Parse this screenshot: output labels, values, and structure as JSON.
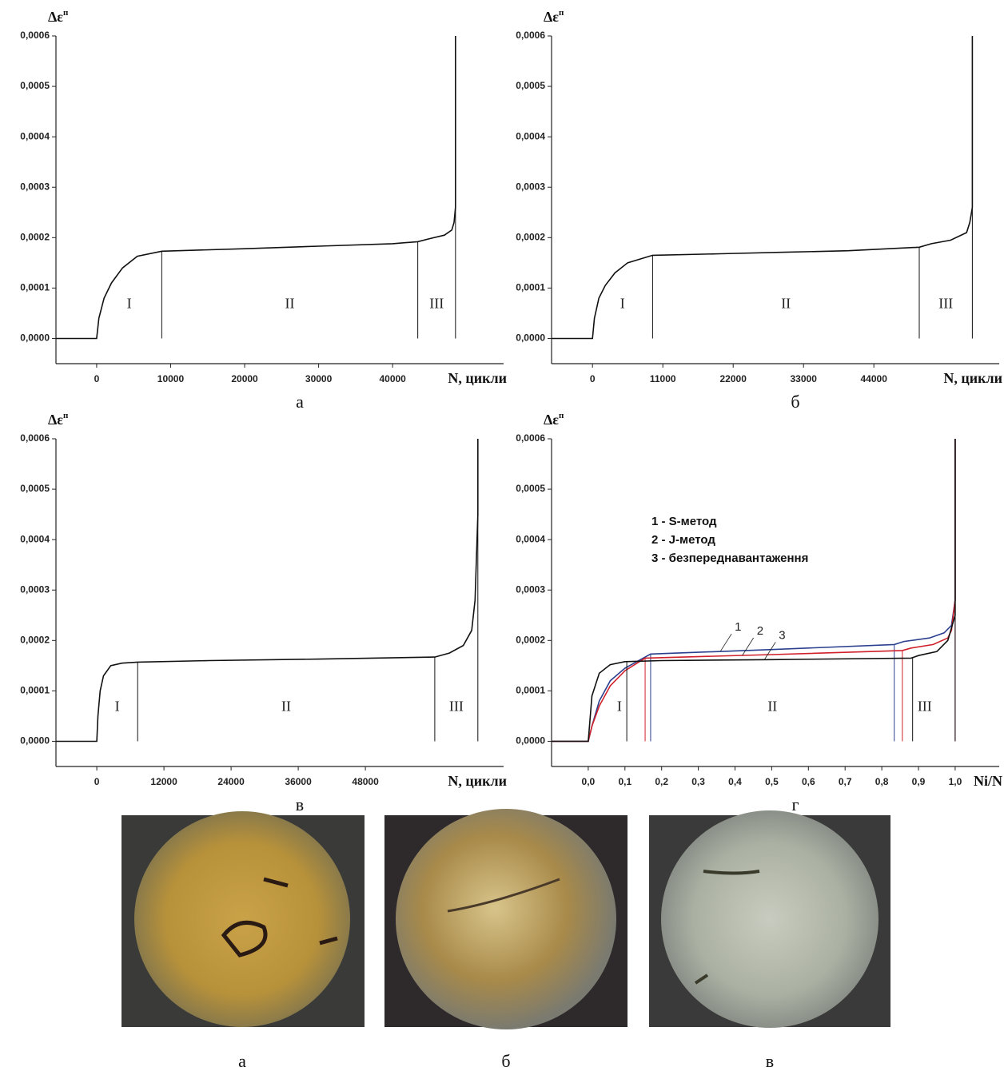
{
  "chart_data": [
    {
      "type": "line",
      "ylabel": "Δε",
      "ylabel_superscript": "п",
      "xlabel": "N, цикли",
      "caption": "а",
      "xlim": [
        -5500,
        55000
      ],
      "ylim": [
        -5e-05,
        0.0006
      ],
      "xticks": [
        0,
        10000,
        20000,
        30000,
        40000
      ],
      "yticks": [
        {
          "value": 0,
          "label": "0,0000"
        },
        {
          "value": 0.0001,
          "label": "0,0001"
        },
        {
          "value": 0.0002,
          "label": "0,0002"
        },
        {
          "value": 0.0003,
          "label": "0,0003"
        },
        {
          "value": 0.0004,
          "label": "0,0004"
        },
        {
          "value": 0.0005,
          "label": "0,0005"
        },
        {
          "value": 0.0006,
          "label": "0,0006"
        }
      ],
      "region_labels": [
        "I",
        "II",
        "III"
      ],
      "series": [
        {
          "color": "#111111",
          "x": [
            -5500,
            0,
            300,
            1000,
            2000,
            3500,
            5500,
            8800,
            20000,
            30000,
            40000,
            43400,
            45000,
            47000,
            48000,
            48300,
            48500,
            48500
          ],
          "values": [
            0,
            0,
            4e-05,
            8e-05,
            0.00011,
            0.00014,
            0.000163,
            0.000173,
            0.000178,
            0.000183,
            0.000188,
            0.000192,
            0.000198,
            0.000205,
            0.000215,
            0.00023,
            0.00026,
            0.0006
          ],
          "boundaries": [
            8800,
            43400,
            48500
          ]
        }
      ]
    },
    {
      "type": "line",
      "ylabel": "Δε",
      "ylabel_superscript": "п",
      "xlabel": "N, цикли",
      "caption": "б",
      "xlim": [
        -6400,
        63600
      ],
      "ylim": [
        -5e-05,
        0.0006
      ],
      "xticks": [
        0,
        11000,
        22000,
        33000,
        44000
      ],
      "yticks": [
        {
          "value": 0,
          "label": "0,0000"
        },
        {
          "value": 0.0001,
          "label": "0,0001"
        },
        {
          "value": 0.0002,
          "label": "0,0002"
        },
        {
          "value": 0.0003,
          "label": "0,0003"
        },
        {
          "value": 0.0004,
          "label": "0,0004"
        },
        {
          "value": 0.0005,
          "label": "0,0005"
        },
        {
          "value": 0.0006,
          "label": "0,0006"
        }
      ],
      "region_labels": [
        "I",
        "II",
        "III"
      ],
      "series": [
        {
          "color": "#111111",
          "x": [
            -6400,
            0,
            300,
            1000,
            2000,
            3500,
            5500,
            9400,
            20000,
            30000,
            40000,
            51100,
            53000,
            56000,
            58500,
            59000,
            59400,
            59400
          ],
          "values": [
            0,
            0,
            4e-05,
            8e-05,
            0.000105,
            0.00013,
            0.00015,
            0.000165,
            0.000168,
            0.000171,
            0.000174,
            0.000181,
            0.000188,
            0.000195,
            0.00021,
            0.00023,
            0.00026,
            0.0006
          ],
          "boundaries": [
            9400,
            51100,
            59400
          ]
        }
      ]
    },
    {
      "type": "line",
      "ylabel": "Δε",
      "ylabel_superscript": "п",
      "xlabel": "N, цикли",
      "caption": "в",
      "xlim": [
        -7300,
        72700
      ],
      "ylim": [
        -5e-05,
        0.0006
      ],
      "xticks": [
        0,
        12000,
        24000,
        36000,
        48000
      ],
      "yticks": [
        {
          "value": 0,
          "label": "0,0000"
        },
        {
          "value": 0.0001,
          "label": "0,0001"
        },
        {
          "value": 0.0002,
          "label": "0,0002"
        },
        {
          "value": 0.0003,
          "label": "0,0003"
        },
        {
          "value": 0.0004,
          "label": "0,0004"
        },
        {
          "value": 0.0005,
          "label": "0,0005"
        },
        {
          "value": 0.0006,
          "label": "0,0006"
        }
      ],
      "region_labels": [
        "I",
        "II",
        "III"
      ],
      "series": [
        {
          "color": "#111111",
          "x": [
            -7300,
            0,
            200,
            600,
            1200,
            2500,
            4500,
            7300,
            20000,
            40000,
            60400,
            63000,
            65500,
            67000,
            67600,
            68100,
            68100
          ],
          "values": [
            0,
            0,
            5e-05,
            0.0001,
            0.00013,
            0.00015,
            0.000155,
            0.000157,
            0.00016,
            0.000163,
            0.000167,
            0.000175,
            0.00019,
            0.00022,
            0.00028,
            0.00045,
            0.0006
          ],
          "boundaries": [
            7300,
            60400,
            68100
          ]
        }
      ]
    },
    {
      "type": "line",
      "ylabel": "Δε",
      "ylabel_superscript": "п",
      "xlabel": "Ni/N",
      "caption": "г",
      "xlim": [
        -0.1,
        1.12
      ],
      "ylim": [
        -5e-05,
        0.0006
      ],
      "xticks": [
        {
          "value": 0,
          "label": "0,0"
        },
        {
          "value": 0.1,
          "label": "0,1"
        },
        {
          "value": 0.2,
          "label": "0,2"
        },
        {
          "value": 0.3,
          "label": "0,3"
        },
        {
          "value": 0.4,
          "label": "0,4"
        },
        {
          "value": 0.5,
          "label": "0,5"
        },
        {
          "value": 0.6,
          "label": "0,6"
        },
        {
          "value": 0.7,
          "label": "0,7"
        },
        {
          "value": 0.8,
          "label": "0,8"
        },
        {
          "value": 0.9,
          "label": "0,9"
        },
        {
          "value": 1,
          "label": "1,0"
        }
      ],
      "yticks": [
        {
          "value": 0,
          "label": "0,0000"
        },
        {
          "value": 0.0001,
          "label": "0,0001"
        },
        {
          "value": 0.0002,
          "label": "0,0002"
        },
        {
          "value": 0.0003,
          "label": "0,0003"
        },
        {
          "value": 0.0004,
          "label": "0,0004"
        },
        {
          "value": 0.0005,
          "label": "0,0005"
        },
        {
          "value": 0.0006,
          "label": "0,0006"
        }
      ],
      "region_labels": [
        "I",
        "II",
        "III"
      ],
      "annotations": [
        "1",
        "2",
        "3"
      ],
      "series": [
        {
          "name": "1 - S-метод",
          "color": "#2b3f8f",
          "x": [
            -0.1,
            0,
            0.01,
            0.03,
            0.06,
            0.1,
            0.17,
            0.5,
            0.834,
            0.86,
            0.93,
            0.97,
            0.99,
            1,
            1
          ],
          "values": [
            0,
            0,
            3e-05,
            8e-05,
            0.00012,
            0.000145,
            0.000173,
            0.000182,
            0.000192,
            0.000198,
            0.000205,
            0.000215,
            0.00023,
            0.00028,
            0.0006
          ],
          "boundaries": [
            0.17,
            0.834,
            1
          ]
        },
        {
          "name": "2 - J-метод",
          "color": "#d0202a",
          "x": [
            -0.1,
            0,
            0.01,
            0.03,
            0.06,
            0.1,
            0.155,
            0.5,
            0.856,
            0.88,
            0.94,
            0.98,
            0.99,
            1,
            1
          ],
          "values": [
            0,
            0,
            3e-05,
            7e-05,
            0.00011,
            0.00014,
            0.000165,
            0.000172,
            0.00018,
            0.000185,
            0.000192,
            0.000205,
            0.00022,
            0.00028,
            0.0006
          ],
          "boundaries": [
            0.155,
            0.856,
            1
          ]
        },
        {
          "name": "3 - безпереднавантаження",
          "color": "#111111",
          "x": [
            -0.1,
            0,
            0.01,
            0.03,
            0.06,
            0.1,
            0.2,
            0.5,
            0.88,
            0.9,
            0.95,
            0.98,
            1,
            1
          ],
          "values": [
            0,
            0,
            9e-05,
            0.000135,
            0.000152,
            0.000158,
            0.00016,
            0.000162,
            0.000165,
            0.00017,
            0.000178,
            0.0002,
            0.00025,
            0.0006
          ],
          "boundaries": [
            0.105,
            0.884,
            1
          ]
        }
      ]
    }
  ],
  "photos": {
    "captions": [
      "а",
      "б",
      "в"
    ]
  }
}
